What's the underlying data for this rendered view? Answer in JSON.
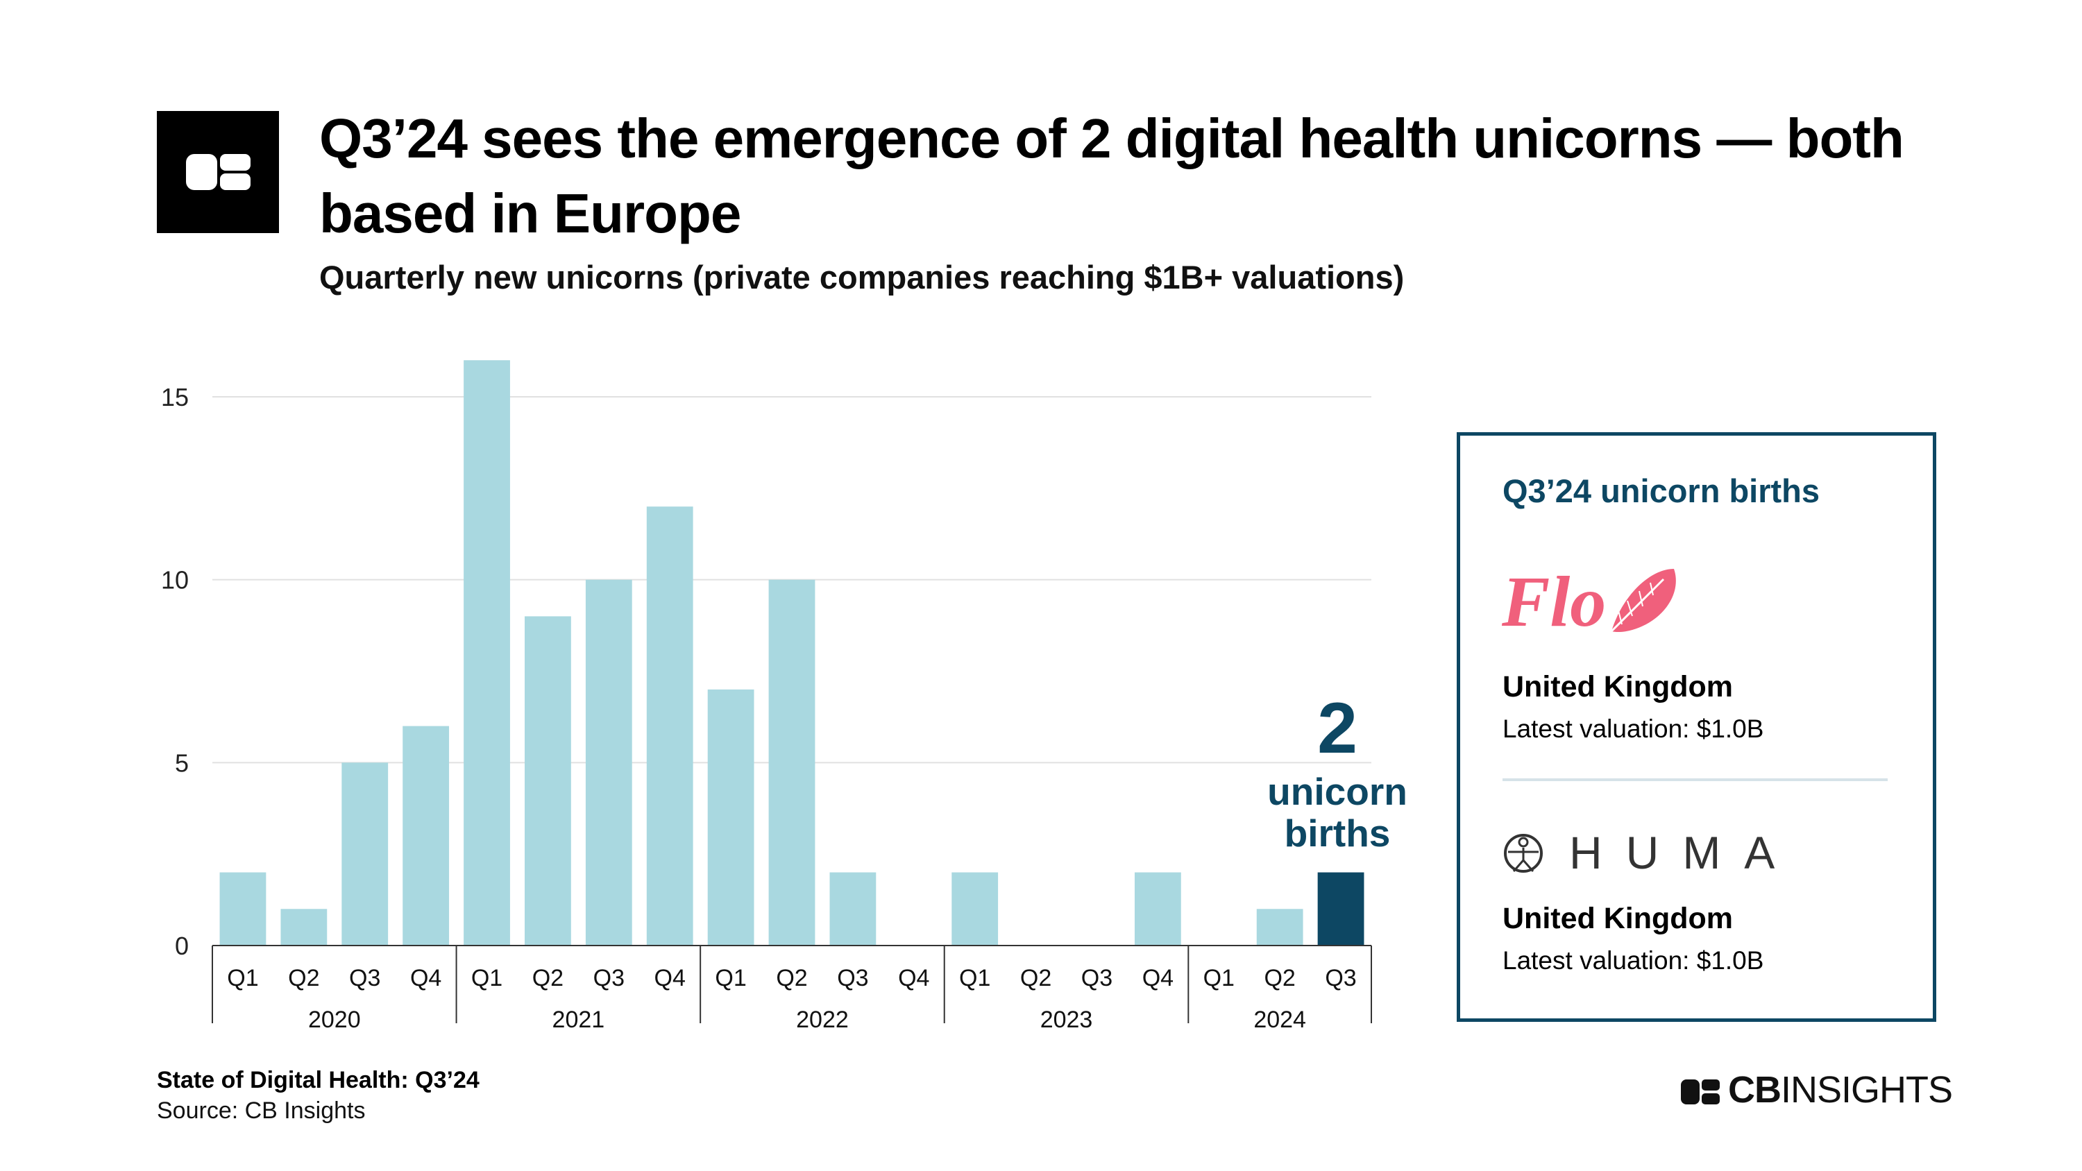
{
  "header": {
    "title": "Q3’24 sees the emergence of 2 digital health unicorns — both based in Europe",
    "subtitle": "Quarterly new unicorns (private companies reaching $1B+ valuations)"
  },
  "chart_data": {
    "type": "bar",
    "title": "Q3’24 sees the emergence of 2 digital health unicorns — both based in Europe",
    "subtitle": "Quarterly new unicorns (private companies reaching $1B+ valuations)",
    "xlabel": "",
    "ylabel": "",
    "ylim": [
      0,
      16
    ],
    "yticks": [
      0,
      5,
      10,
      15
    ],
    "grid": true,
    "categories": [
      "Q1",
      "Q2",
      "Q3",
      "Q4",
      "Q1",
      "Q2",
      "Q3",
      "Q4",
      "Q1",
      "Q2",
      "Q3",
      "Q4",
      "Q1",
      "Q2",
      "Q3",
      "Q4",
      "Q1",
      "Q2",
      "Q3"
    ],
    "year_groups": [
      {
        "label": "2020",
        "count": 4
      },
      {
        "label": "2021",
        "count": 4
      },
      {
        "label": "2022",
        "count": 4
      },
      {
        "label": "2023",
        "count": 4
      },
      {
        "label": "2024",
        "count": 3
      }
    ],
    "values": [
      2,
      1,
      5,
      6,
      16,
      9,
      10,
      12,
      7,
      10,
      2,
      0,
      2,
      0,
      0,
      2,
      0,
      1,
      2
    ],
    "highlight_index": 18,
    "colors": {
      "bar": "#a9d8e0",
      "highlight": "#0d4763",
      "grid": "#e1e1e1",
      "axis": "#333333"
    },
    "annotation": {
      "number": "2",
      "line1": "unicorn",
      "line2": "births"
    }
  },
  "panel": {
    "title": "Q3’24 unicorn births",
    "companies": [
      {
        "name": "Flo",
        "logo": "flo-logo",
        "country": "United Kingdom",
        "valuation": "Latest valuation: $1.0B",
        "color": "#f0607c"
      },
      {
        "name": "HUMA",
        "logo": "huma-logo",
        "country": "United Kingdom",
        "valuation": "Latest valuation: $1.0B",
        "color": "#333333"
      }
    ]
  },
  "footer": {
    "title": "State of Digital Health: Q3’24",
    "source": "Source: CB Insights",
    "brand_bold": "CB",
    "brand_light": "INSIGHTS"
  }
}
